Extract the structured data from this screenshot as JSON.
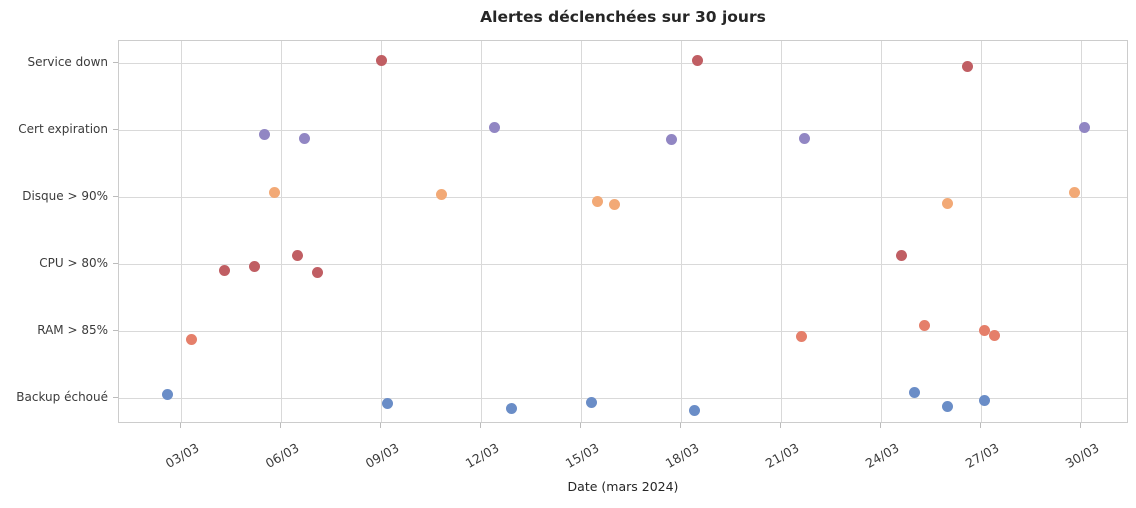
{
  "chart_data": {
    "type": "scatter",
    "title": "Alertes déclenchées sur 30 jours",
    "xlabel": "Date (mars 2024)",
    "ylabel": "",
    "grid": true,
    "legend": "none",
    "categories": [
      "Service down",
      "Cert expiration",
      "Disque > 90%",
      "CPU > 80%",
      "RAM > 85%",
      "Backup échoué"
    ],
    "x_ticks": [
      "03/03",
      "06/03",
      "09/03",
      "12/03",
      "15/03",
      "18/03",
      "21/03",
      "24/03",
      "27/03",
      "30/03"
    ],
    "x_tick_days": [
      3,
      6,
      9,
      12,
      15,
      18,
      21,
      24,
      27,
      30
    ],
    "x_range_days": [
      1.2,
      31.5
    ],
    "x_unit": "day of March 2024",
    "colors": {
      "grid": "#d9d9d9",
      "spine": "#cccccc",
      "text": "#3b3b3b",
      "title": "#262626"
    },
    "series": [
      {
        "name": "Service down",
        "color": "#c05e63",
        "points": [
          {
            "day": 9.0,
            "dy": -3
          },
          {
            "day": 18.5,
            "dy": -3
          },
          {
            "day": 26.6,
            "dy": 3
          }
        ]
      },
      {
        "name": "Cert expiration",
        "color": "#9186c3",
        "points": [
          {
            "day": 5.5,
            "dy": 4
          },
          {
            "day": 6.7,
            "dy": 8
          },
          {
            "day": 12.4,
            "dy": -3
          },
          {
            "day": 17.7,
            "dy": 9
          },
          {
            "day": 21.7,
            "dy": 8
          },
          {
            "day": 30.1,
            "dy": -3
          }
        ]
      },
      {
        "name": "Disque > 90%",
        "color": "#f2a976",
        "points": [
          {
            "day": 5.8,
            "dy": -5
          },
          {
            "day": 10.8,
            "dy": -3
          },
          {
            "day": 15.5,
            "dy": 4
          },
          {
            "day": 16.0,
            "dy": 7
          },
          {
            "day": 26.0,
            "dy": 6
          },
          {
            "day": 29.8,
            "dy": -5
          }
        ]
      },
      {
        "name": "CPU > 80%",
        "color": "#c05e63",
        "points": [
          {
            "day": 4.3,
            "dy": 6
          },
          {
            "day": 5.2,
            "dy": 2
          },
          {
            "day": 6.5,
            "dy": -9
          },
          {
            "day": 7.1,
            "dy": 8
          },
          {
            "day": 24.6,
            "dy": -9
          }
        ]
      },
      {
        "name": "RAM > 85%",
        "color": "#e57f6a",
        "points": [
          {
            "day": 3.3,
            "dy": 8
          },
          {
            "day": 21.6,
            "dy": 5
          },
          {
            "day": 25.3,
            "dy": -6
          },
          {
            "day": 27.1,
            "dy": -1
          },
          {
            "day": 27.4,
            "dy": 4
          }
        ]
      },
      {
        "name": "Backup échoué",
        "color": "#6a8dc7",
        "points": [
          {
            "day": 2.6,
            "dy": -4
          },
          {
            "day": 9.2,
            "dy": 5
          },
          {
            "day": 12.9,
            "dy": 10
          },
          {
            "day": 15.3,
            "dy": 4
          },
          {
            "day": 18.4,
            "dy": 12
          },
          {
            "day": 25.0,
            "dy": -6
          },
          {
            "day": 26.0,
            "dy": 8
          },
          {
            "day": 27.1,
            "dy": 2
          }
        ]
      }
    ]
  }
}
